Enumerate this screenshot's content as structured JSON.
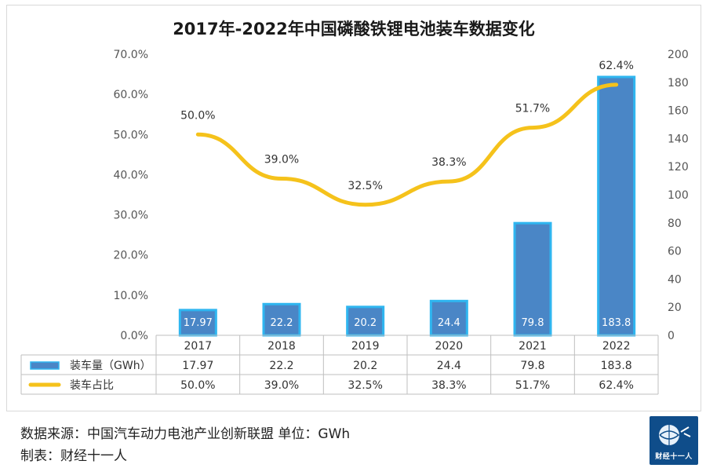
{
  "title": "2017年-2022年中国磷酸铁锂电池装车数据变化",
  "source_text": "数据来源：中国汽车动力电池产业创新联盟 单位：GWh",
  "maker_text": "制表：财经十一人",
  "logo_text": "财经十一人",
  "colors": {
    "bar": "#4a86c6",
    "bar_edge": "#2fb6f0",
    "line": "#f5c21b",
    "grid": "#e0e0e0"
  },
  "chart_data": {
    "type": "bar",
    "title": "2017年-2022年中国磷酸铁锂电池装车数据变化",
    "categories": [
      "2017",
      "2018",
      "2019",
      "2020",
      "2021",
      "2022"
    ],
    "left_axis": {
      "ticks": [
        "0.0%",
        "10.0%",
        "20.0%",
        "30.0%",
        "40.0%",
        "50.0%",
        "60.0%",
        "70.0%"
      ],
      "ylim": [
        0,
        70
      ]
    },
    "right_axis": {
      "ticks": [
        "0",
        "20",
        "40",
        "60",
        "80",
        "100",
        "120",
        "140",
        "160",
        "180",
        "200"
      ],
      "ylim": [
        0,
        200
      ]
    },
    "series": [
      {
        "name": "装车量（GWh）",
        "type": "bar",
        "axis": "right",
        "values": [
          17.97,
          22.2,
          20.2,
          24.4,
          79.8,
          183.8
        ],
        "labels": [
          "17.97",
          "22.2",
          "20.2",
          "24.4",
          "79.8",
          "183.8"
        ]
      },
      {
        "name": "装车占比",
        "type": "line",
        "axis": "left",
        "values": [
          50.0,
          39.0,
          32.5,
          38.3,
          51.7,
          62.4
        ],
        "labels": [
          "50.0%",
          "39.0%",
          "32.5%",
          "38.3%",
          "51.7%",
          "62.4%"
        ]
      }
    ],
    "grid": true,
    "legend": "data-table"
  }
}
